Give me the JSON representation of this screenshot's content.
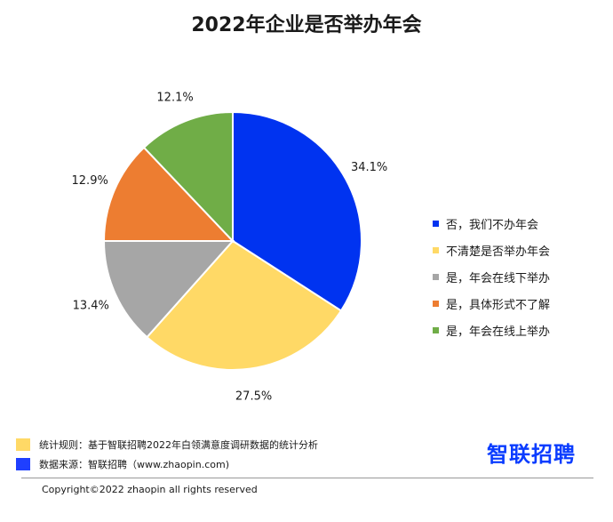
{
  "chart_data": {
    "type": "pie",
    "title": "2022年企业是否举办年会",
    "categories": [
      "否，我们不办年会",
      "不清楚是否举办年会",
      "是，年会在线下举办",
      "是，具体形式不了解",
      "是，年会在线上举办"
    ],
    "values": [
      34.1,
      27.5,
      13.4,
      12.9,
      12.1
    ],
    "labels": [
      "34.1%",
      "27.5%",
      "13.4%",
      "12.9%",
      "12.1%"
    ],
    "colors": [
      "#0033f0",
      "#ffd966",
      "#a6a6a6",
      "#ed7d31",
      "#70ad47"
    ],
    "legend_position": "right"
  },
  "footer": {
    "notes": [
      {
        "text": "统计规则：基于智联招聘2022年白领满意度调研数据的统计分析",
        "color": "#ffd966"
      },
      {
        "text": "数据来源：智联招聘（www.zhaopin.com)",
        "color": "#1f3fff"
      }
    ],
    "brand": "智联招聘",
    "copyright": "Copyright©2022 zhaopin all rights reserved"
  }
}
